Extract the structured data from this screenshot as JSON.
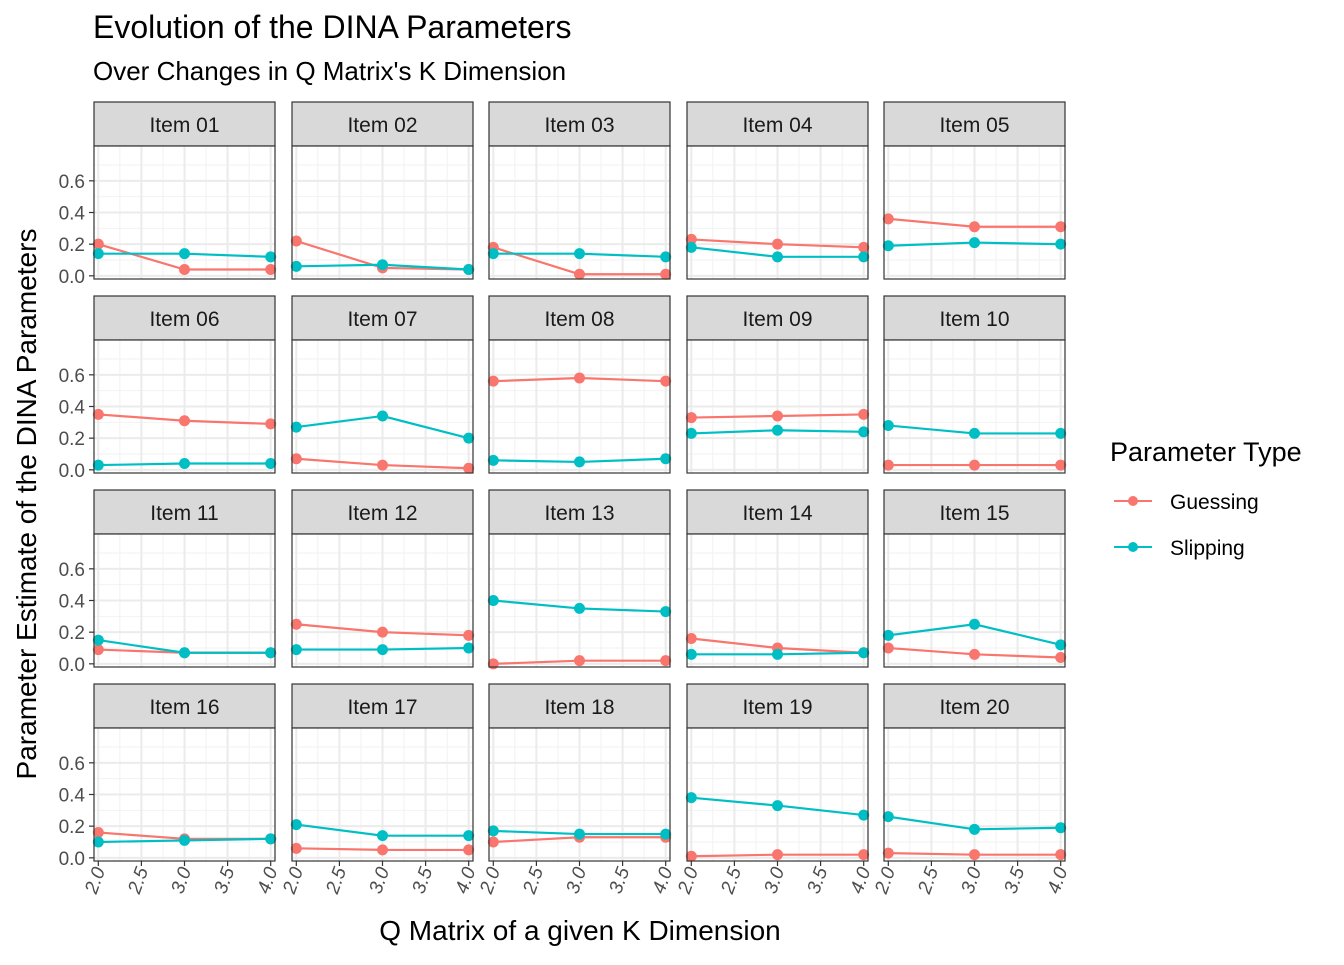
{
  "chart_data": {
    "type": "line",
    "title": "Evolution of the DINA Parameters",
    "subtitle": "Over Changes in Q Matrix's K Dimension",
    "xlabel": "Q Matrix of a given K Dimension",
    "ylabel": "Parameter Estimate of the DINA Parameters",
    "x": [
      2,
      3,
      4
    ],
    "xlim": [
      1.95,
      4.05
    ],
    "ylim": [
      -0.02,
      0.82
    ],
    "x_ticks": [
      2.0,
      2.5,
      3.0,
      3.5,
      4.0
    ],
    "x_tick_labels": [
      "2.0",
      "2.5",
      "3.0",
      "3.5",
      "4.0"
    ],
    "y_ticks": [
      0.0,
      0.2,
      0.4,
      0.6
    ],
    "y_tick_labels": [
      "0.0",
      "0.2",
      "0.4",
      "0.6"
    ],
    "grid": true,
    "legend": {
      "title": "Parameter Type",
      "position": "right",
      "entries": [
        {
          "name": "Guessing",
          "color": "#F8766D"
        },
        {
          "name": "Slipping",
          "color": "#00BFC4"
        }
      ]
    },
    "facets": [
      {
        "label": "Item 01",
        "guessing": [
          0.2,
          0.04,
          0.04
        ],
        "slipping": [
          0.14,
          0.14,
          0.12
        ]
      },
      {
        "label": "Item 02",
        "guessing": [
          0.22,
          0.05,
          0.04
        ],
        "slipping": [
          0.06,
          0.07,
          0.04
        ]
      },
      {
        "label": "Item 03",
        "guessing": [
          0.18,
          0.01,
          0.01
        ],
        "slipping": [
          0.14,
          0.14,
          0.12
        ]
      },
      {
        "label": "Item 04",
        "guessing": [
          0.23,
          0.2,
          0.18
        ],
        "slipping": [
          0.18,
          0.12,
          0.12
        ]
      },
      {
        "label": "Item 05",
        "guessing": [
          0.36,
          0.31,
          0.31
        ],
        "slipping": [
          0.19,
          0.21,
          0.2
        ]
      },
      {
        "label": "Item 06",
        "guessing": [
          0.35,
          0.31,
          0.29
        ],
        "slipping": [
          0.03,
          0.04,
          0.04
        ]
      },
      {
        "label": "Item 07",
        "guessing": [
          0.07,
          0.03,
          0.01
        ],
        "slipping": [
          0.27,
          0.34,
          0.2
        ]
      },
      {
        "label": "Item 08",
        "guessing": [
          0.56,
          0.58,
          0.56
        ],
        "slipping": [
          0.06,
          0.05,
          0.07
        ]
      },
      {
        "label": "Item 09",
        "guessing": [
          0.33,
          0.34,
          0.35
        ],
        "slipping": [
          0.23,
          0.25,
          0.24
        ]
      },
      {
        "label": "Item 10",
        "guessing": [
          0.03,
          0.03,
          0.03
        ],
        "slipping": [
          0.28,
          0.23,
          0.23
        ]
      },
      {
        "label": "Item 11",
        "guessing": [
          0.09,
          0.07,
          0.07
        ],
        "slipping": [
          0.15,
          0.07,
          0.07
        ]
      },
      {
        "label": "Item 12",
        "guessing": [
          0.25,
          0.2,
          0.18
        ],
        "slipping": [
          0.09,
          0.09,
          0.1
        ]
      },
      {
        "label": "Item 13",
        "guessing": [
          0.0,
          0.02,
          0.02
        ],
        "slipping": [
          0.4,
          0.35,
          0.33
        ]
      },
      {
        "label": "Item 14",
        "guessing": [
          0.16,
          0.1,
          0.07
        ],
        "slipping": [
          0.06,
          0.06,
          0.07
        ]
      },
      {
        "label": "Item 15",
        "guessing": [
          0.1,
          0.06,
          0.04
        ],
        "slipping": [
          0.18,
          0.25,
          0.12
        ]
      },
      {
        "label": "Item 16",
        "guessing": [
          0.16,
          0.12,
          0.12
        ],
        "slipping": [
          0.1,
          0.11,
          0.12
        ]
      },
      {
        "label": "Item 17",
        "guessing": [
          0.06,
          0.05,
          0.05
        ],
        "slipping": [
          0.21,
          0.14,
          0.14
        ]
      },
      {
        "label": "Item 18",
        "guessing": [
          0.1,
          0.13,
          0.13
        ],
        "slipping": [
          0.17,
          0.15,
          0.15
        ]
      },
      {
        "label": "Item 19",
        "guessing": [
          0.01,
          0.02,
          0.02
        ],
        "slipping": [
          0.38,
          0.33,
          0.27
        ]
      },
      {
        "label": "Item 20",
        "guessing": [
          0.03,
          0.02,
          0.02
        ],
        "slipping": [
          0.26,
          0.18,
          0.19
        ]
      }
    ]
  }
}
